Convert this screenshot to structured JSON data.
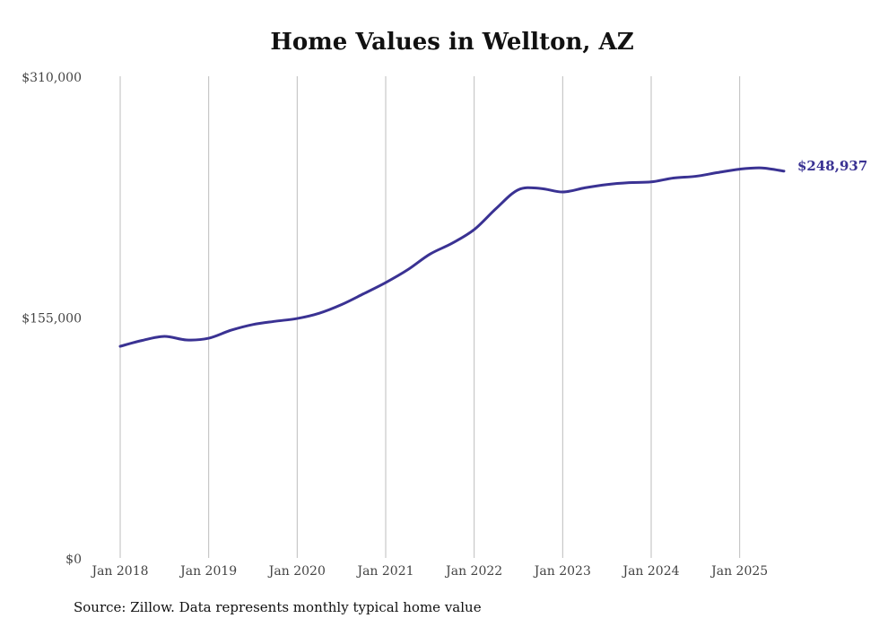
{
  "chart_data": {
    "type": "line",
    "title": "Home Values in Wellton, AZ",
    "source": "Source: Zillow. Data represents monthly typical home value",
    "xlabel": "",
    "ylabel": "",
    "ylim": [
      0,
      310000
    ],
    "y_ticks": [
      0,
      155000,
      310000
    ],
    "y_tick_labels": [
      "$0",
      "$155,000",
      "$310,000"
    ],
    "x_ticks": [
      2018,
      2019,
      2020,
      2021,
      2022,
      2023,
      2024,
      2025
    ],
    "x_tick_labels": [
      "Jan 2018",
      "Jan 2019",
      "Jan 2020",
      "Jan 2021",
      "Jan 2022",
      "Jan 2023",
      "Jan 2024",
      "Jan 2025"
    ],
    "xlim": [
      2018,
      2025.5
    ],
    "grid": "vertical",
    "line_color": "#3a3293",
    "end_label": "$248,937",
    "series": [
      {
        "name": "Typical home value",
        "x": [
          2018.0,
          2018.25,
          2018.5,
          2018.75,
          2019.0,
          2019.25,
          2019.5,
          2019.75,
          2020.0,
          2020.25,
          2020.5,
          2020.75,
          2021.0,
          2021.25,
          2021.5,
          2021.75,
          2022.0,
          2022.25,
          2022.5,
          2022.75,
          2023.0,
          2023.25,
          2023.5,
          2023.75,
          2024.0,
          2024.25,
          2024.5,
          2024.75,
          2025.0,
          2025.25,
          2025.5
        ],
        "values": [
          136200,
          140000,
          142600,
          140300,
          141400,
          146500,
          150200,
          152300,
          154100,
          157500,
          163000,
          170000,
          177200,
          185500,
          195500,
          202500,
          211300,
          225000,
          237000,
          237800,
          235500,
          238200,
          240300,
          241500,
          242000,
          244500,
          245600,
          248000,
          250200,
          251000,
          248937
        ]
      }
    ]
  }
}
